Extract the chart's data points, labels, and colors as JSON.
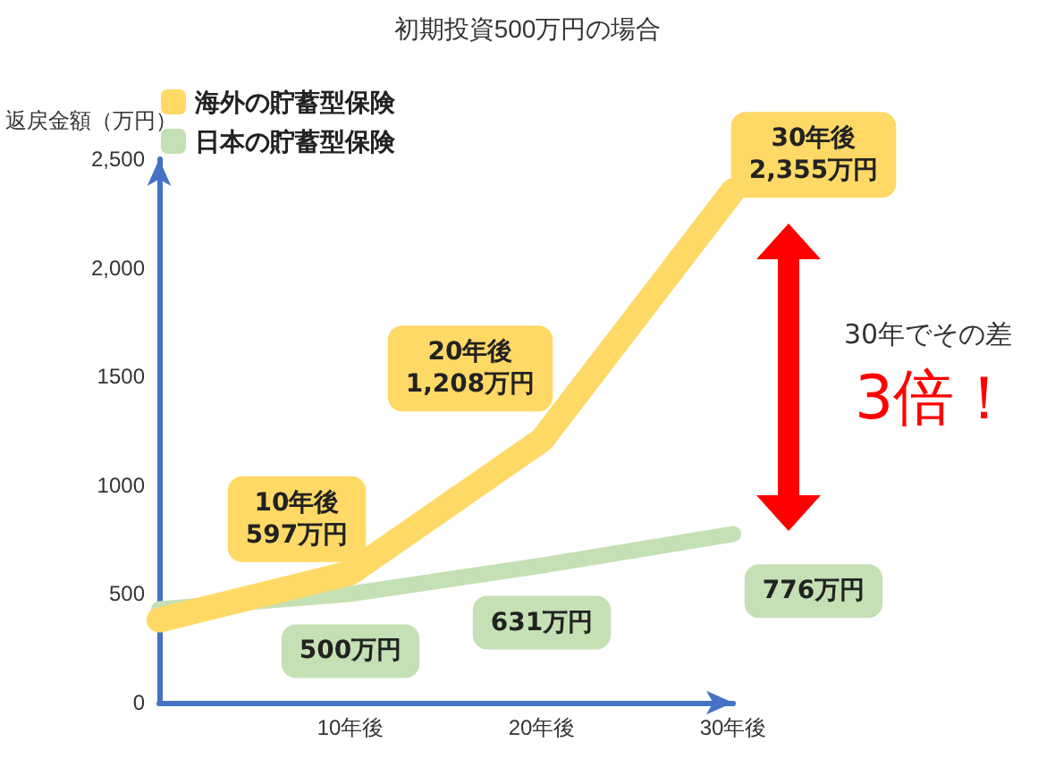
{
  "chart_data": {
    "type": "line",
    "title": "初期投資500万円の場合",
    "ylabel": "返戻金額（万円）",
    "categories": [
      null,
      "10年後",
      "20年後",
      "30年後"
    ],
    "series": [
      {
        "name": "海外の貯蓄型保険",
        "color": "#ffd966",
        "values": [
          380,
          597,
          1208,
          2355
        ],
        "value_labels": [
          null,
          "10年後\n597万円",
          "20年後\n1,208万円",
          "30年後\n2,355万円"
        ]
      },
      {
        "name": "日本の貯蓄型保険",
        "color": "#c5e0b4",
        "values": [
          430,
          500,
          631,
          776
        ],
        "value_labels": [
          null,
          "500万円",
          "631万円",
          "776万円"
        ]
      }
    ],
    "ylim": [
      0,
      2500
    ],
    "yticks": [
      0,
      500,
      1000,
      1500,
      {
        "value": 2000,
        "label": "2,000"
      },
      {
        "value": 2500,
        "label": "2,500"
      }
    ],
    "grid": false,
    "legend": "top left",
    "line_style": "solid",
    "annotations": [
      "30年でその差",
      "3倍！"
    ]
  }
}
